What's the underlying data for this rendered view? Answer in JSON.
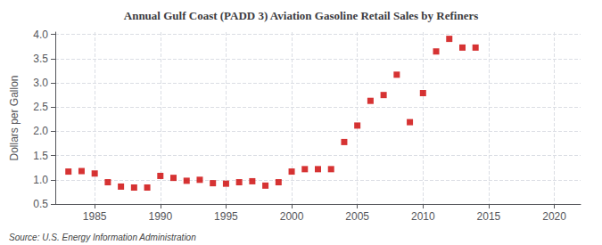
{
  "chart_data": {
    "type": "scatter",
    "title": "Annual Gulf Coast (PADD 3) Aviation Gasoline Retail Sales by Refiners",
    "ylabel": "Dollars per Gallon",
    "annotations": [
      "Source: U.S. Energy Information Administration"
    ],
    "x": [
      1983,
      1984,
      1985,
      1986,
      1987,
      1988,
      1989,
      1990,
      1991,
      1992,
      1993,
      1994,
      1995,
      1996,
      1997,
      1998,
      1999,
      2000,
      2001,
      2002,
      2003,
      2004,
      2005,
      2006,
      2007,
      2008,
      2009,
      2010,
      2011,
      2012,
      2013,
      2014
    ],
    "values": [
      1.17,
      1.18,
      1.13,
      0.95,
      0.86,
      0.84,
      0.84,
      1.08,
      1.04,
      0.98,
      1.0,
      0.93,
      0.92,
      0.95,
      0.97,
      0.88,
      0.95,
      1.17,
      1.22,
      1.22,
      1.22,
      1.78,
      2.12,
      2.63,
      2.75,
      3.17,
      2.19,
      2.79,
      3.65,
      3.91,
      3.73,
      3.73
    ],
    "color": "#cc0000",
    "marker": "square",
    "xlim": [
      1982,
      2022
    ],
    "xticks": [
      1985,
      1990,
      1995,
      2000,
      2005,
      2010,
      2015,
      2020
    ],
    "ylim": [
      0.5,
      4.05
    ],
    "yticks": [
      0.5,
      {
        "value": 1.0,
        "label": "1.0"
      },
      1.5,
      {
        "value": 2.0,
        "label": "2.0"
      },
      2.5,
      {
        "value": 3.0,
        "label": "3.0"
      },
      3.5,
      {
        "value": 4.0,
        "label": "4.0"
      }
    ],
    "grid": true
  }
}
